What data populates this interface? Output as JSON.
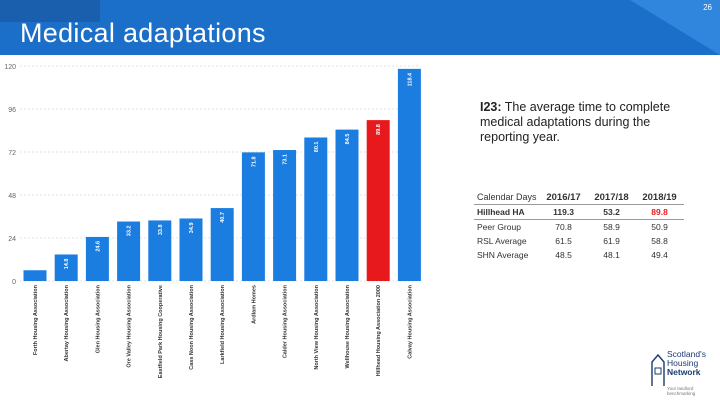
{
  "header": {
    "title": "Medical adaptations",
    "page_number": "26"
  },
  "info": {
    "code": "I23:",
    "description": "The average time to complete medical adaptations during the reporting year."
  },
  "table": {
    "header_label": "Calendar Days",
    "years": [
      "2016/17",
      "2017/18",
      "2018/19"
    ],
    "rows": [
      {
        "label": "Hillhead HA",
        "values": [
          "119.3",
          "53.2",
          "89.8"
        ]
      },
      {
        "label": "Peer Group",
        "values": [
          "70.8",
          "58.9",
          "50.9"
        ]
      },
      {
        "label": "RSL Average",
        "values": [
          "61.5",
          "61.9",
          "58.8"
        ]
      },
      {
        "label": "SHN Average",
        "values": [
          "48.5",
          "48.1",
          "49.4"
        ]
      }
    ]
  },
  "logo": {
    "line1": "Scotland's",
    "line2": "Housing",
    "line3": "Network",
    "tagline": "Your landlord benchmarking"
  },
  "chart_data": {
    "type": "bar",
    "ylim": [
      0,
      120
    ],
    "yticks": [
      0,
      24,
      48,
      72,
      96,
      120
    ],
    "grid": true,
    "categories": [
      "Forth Housing Association",
      "Abertay Housing Association",
      "Glen Housing Association",
      "Ore Valley Housing Association",
      "Eastfield Park Housing Cooperative",
      "Cass Noon Housing Association",
      "Larkfield Housing Association",
      "Ardlam Homes",
      "Calder Housing Association",
      "North View Housing Association",
      "Wellhouse Housing Association",
      "Hillhead Housing Association 2000",
      "Calvay Housing Association"
    ],
    "values": [
      6.0,
      14.8,
      24.6,
      33.2,
      33.8,
      34.9,
      40.7,
      71.8,
      73.1,
      80.1,
      84.5,
      89.8,
      118.4
    ],
    "labels": [
      "",
      "14.8",
      "24.6",
      "33.2",
      "33.8",
      "34.9",
      "40.7",
      "71.8",
      "73.1",
      "80.1",
      "84.5",
      "89.8",
      "118.4"
    ],
    "highlight_index": 11,
    "colors": {
      "bar": "#1b7de0",
      "highlight": "#e8191c",
      "grid": "#c8c8c8"
    }
  }
}
